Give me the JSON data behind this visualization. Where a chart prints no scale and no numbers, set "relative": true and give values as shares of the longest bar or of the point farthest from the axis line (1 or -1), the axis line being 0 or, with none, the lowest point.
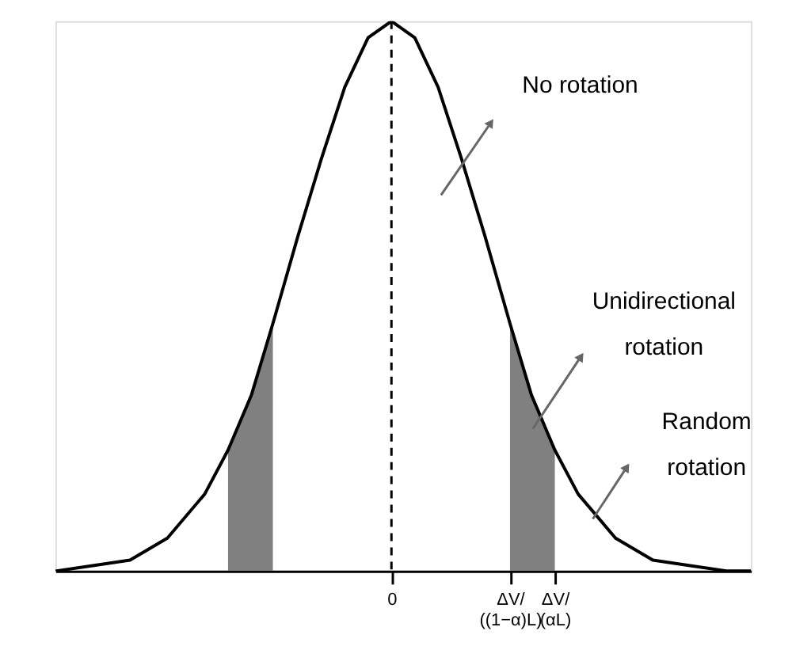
{
  "chart_data": {
    "type": "line",
    "relative": true,
    "grid": false,
    "xlim": [
      -3.6,
      3.85
    ],
    "xticks": [
      0,
      {
        "value": 1.27,
        "label": "ΔV/((1−α)L)"
      },
      {
        "value": 1.75,
        "label": "ΔV/(αL)"
      }
    ],
    "series": [
      {
        "color": "#000000",
        "line_style": "solid",
        "x": [
          -3.6,
          -3.2,
          -2.8,
          -2.4,
          -2.0,
          -1.75,
          -1.5,
          -1.27,
          -1.0,
          -0.75,
          -0.5,
          -0.25,
          0,
          0.25,
          0.5,
          0.75,
          1.0,
          1.27,
          1.5,
          1.75,
          2.0,
          2.4,
          2.8,
          3.2,
          3.6,
          3.85
        ],
        "values": [
          0.0,
          0.01,
          0.02,
          0.06,
          0.14,
          0.22,
          0.32,
          0.45,
          0.61,
          0.75,
          0.88,
          0.97,
          1.0,
          0.97,
          0.88,
          0.75,
          0.61,
          0.45,
          0.32,
          0.22,
          0.14,
          0.06,
          0.02,
          0.01,
          0.0,
          0.0
        ]
      },
      {
        "type": "area",
        "color": "#808080",
        "x": [
          -1.75,
          -1.5,
          -1.27
        ],
        "values": [
          0.22,
          0.32,
          0.45
        ]
      },
      {
        "type": "area",
        "color": "#808080",
        "x": [
          1.27,
          1.5,
          1.75
        ],
        "values": [
          0.45,
          0.32,
          0.22
        ]
      }
    ],
    "ref_lines": [
      {
        "axis": "x",
        "value": 0,
        "line_style": "dashed",
        "color": "#000000"
      }
    ],
    "annotations": [
      "No rotation",
      "Unidirectional rotation",
      "Random rotation"
    ]
  }
}
